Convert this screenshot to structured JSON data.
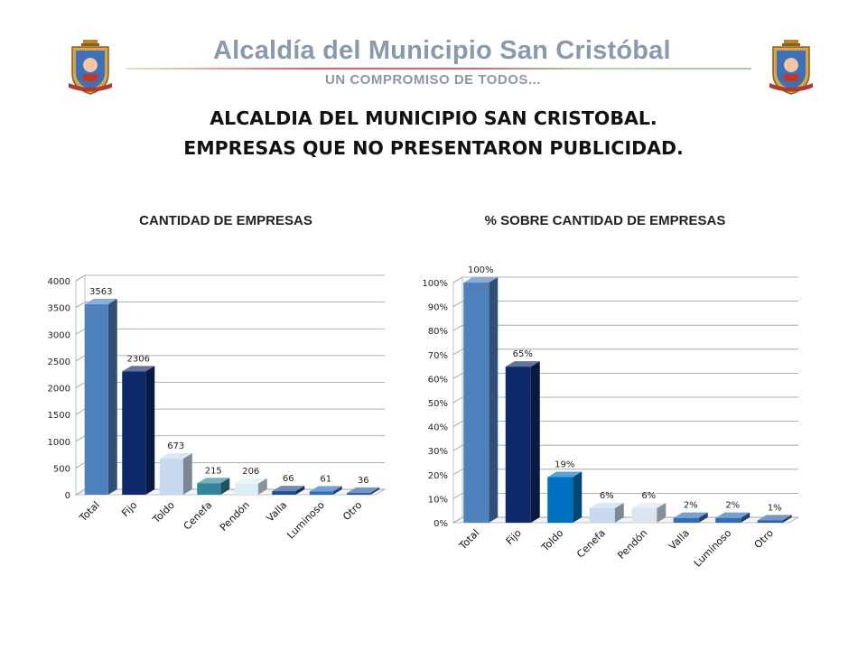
{
  "header": {
    "brand_title": "Alcaldía del Municipio San Cristóbal",
    "brand_tagline": "UN COMPROMISO DE TODOS...",
    "title_line1": "ALCALDIA DEL MUNICIPIO SAN CRISTOBAL.",
    "title_line2": "EMPRESAS QUE NO PRESENTARON PUBLICIDAD."
  },
  "chart_data": [
    {
      "type": "bar",
      "title": "CANTIDAD DE EMPRESAS",
      "categories": [
        "Total",
        "Fijo",
        "Toldo",
        "Cenefa",
        "Pendón",
        "Valla",
        "Luminoso",
        "Otro"
      ],
      "values": [
        3563,
        2306,
        673,
        215,
        206,
        66,
        61,
        36
      ],
      "data_labels": [
        "3563",
        "2306",
        "673",
        "215",
        "206",
        "66",
        "61",
        "36"
      ],
      "ylim": [
        0,
        4000
      ],
      "yticks": [
        "0",
        "500",
        "1000",
        "1500",
        "2000",
        "2500",
        "3000",
        "3500",
        "4000"
      ],
      "colors": [
        "#4f81bd",
        "#0f2a6b",
        "#c6d9f1",
        "#31859c",
        "#dbeef4",
        "#1f4e8c",
        "#2e6db4",
        "#2c5fa8"
      ],
      "grid": true,
      "legend": "none"
    },
    {
      "type": "bar",
      "title": "% SOBRE CANTIDAD DE EMPRESAS",
      "categories": [
        "Total",
        "Fijo",
        "Toldo",
        "Cenefa",
        "Pendón",
        "Valla",
        "Luminoso",
        "Otro"
      ],
      "values": [
        100,
        65,
        19,
        6,
        6,
        2,
        2,
        1
      ],
      "data_labels": [
        "100%",
        "65%",
        "19%",
        "6%",
        "6%",
        "2%",
        "2%",
        "1%"
      ],
      "ylim": [
        0,
        100
      ],
      "yticks": [
        "0%",
        "10%",
        "20%",
        "30%",
        "40%",
        "50%",
        "60%",
        "70%",
        "80%",
        "90%",
        "100%"
      ],
      "colors": [
        "#4f81bd",
        "#0f2a6b",
        "#0070c0",
        "#c6d9f1",
        "#dbe5f1",
        "#2e6db4",
        "#2e6db4",
        "#2c5fa8"
      ],
      "grid": true,
      "legend": "none"
    }
  ]
}
